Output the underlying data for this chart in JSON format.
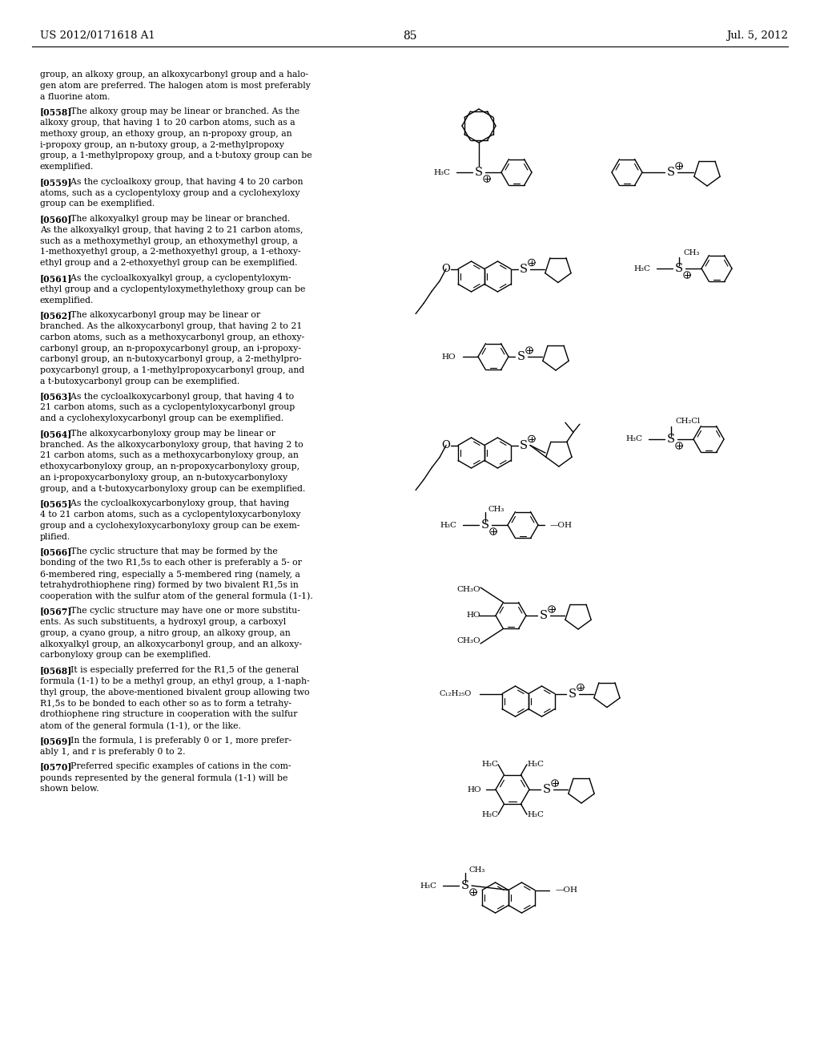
{
  "background_color": "#ffffff",
  "header_left": "US 2012/0171618 A1",
  "header_center": "85",
  "header_right": "Jul. 5, 2012",
  "text_lines": [
    "group, an alkoxy group, an alkoxycarbonyl group and a halo-",
    "gen atom are preferred. The halogen atom is most preferably",
    "a fluorine atom.",
    "",
    "[0558]    The alkoxy group may be linear or branched. As the",
    "alkoxy group, that having 1 to 20 carbon atoms, such as a",
    "methoxy group, an ethoxy group, an n-propoxy group, an",
    "i-propoxy group, an n-butoxy group, a 2-methylpropoxy",
    "group, a 1-methylpropoxy group, and a t-butoxy group can be",
    "exemplified.",
    "",
    "[0559]    As the cycloalkoxy group, that having 4 to 20 carbon",
    "atoms, such as a cyclopentyloxy group and a cyclohexyloxy",
    "group can be exemplified.",
    "",
    "[0560]    The alkoxyalkyl group may be linear or branched.",
    "As the alkoxyalkyl group, that having 2 to 21 carbon atoms,",
    "such as a methoxymethyl group, an ethoxymethyl group, a",
    "1-methoxyethyl group, a 2-methoxyethyl group, a 1-ethoxy-",
    "ethyl group and a 2-ethoxyethyl group can be exemplified.",
    "",
    "[0561]    As the cycloalkoxyalkyl group, a cyclopentyloxym-",
    "ethyl group and a cyclopentyloxymethylethoxy group can be",
    "exemplified.",
    "",
    "[0562]    The alkoxycarbonyl group may be linear or",
    "branched. As the alkoxycarbonyl group, that having 2 to 21",
    "carbon atoms, such as a methoxycarbonyl group, an ethoxy-",
    "carbonyl group, an n-propoxycarbonyl group, an i-propoxy-",
    "carbonyl group, an n-butoxycarbonyl group, a 2-methylpro-",
    "poxycarbonyl group, a 1-methylpropoxycarbonyl group, and",
    "a t-butoxycarbonyl group can be exemplified.",
    "",
    "[0563]    As the cycloalkoxycarbonyl group, that having 4 to",
    "21 carbon atoms, such as a cyclopentyloxycarbonyl group",
    "and a cyclohexyloxycarbonyl group can be exemplified.",
    "",
    "[0564]    The alkoxycarbonyloxy group may be linear or",
    "branched. As the alkoxycarbonyloxy group, that having 2 to",
    "21 carbon atoms, such as a methoxycarbonyloxy group, an",
    "ethoxycarbonyloxy group, an n-propoxycarbonyloxy group,",
    "an i-propoxycarbonyloxy group, an n-butoxycarbonyloxy",
    "group, and a t-butoxycarbonyloxy group can be exemplified.",
    "",
    "[0565]    As the cycloalkoxycarbonyloxy group, that having",
    "4 to 21 carbon atoms, such as a cyclopentyloxycarbonyloxy",
    "group and a cyclohexyloxycarbonyloxy group can be exem-",
    "plified.",
    "",
    "[0566]    The cyclic structure that may be formed by the",
    "bonding of the two R1,5s to each other is preferably a 5- or",
    "6-membered ring, especially a 5-membered ring (namely, a",
    "tetrahydrothiophene ring) formed by two bivalent R1,5s in",
    "cooperation with the sulfur atom of the general formula (1-1).",
    "",
    "[0567]    The cyclic structure may have one or more substitu-",
    "ents. As such substituents, a hydroxyl group, a carboxyl",
    "group, a cyano group, a nitro group, an alkoxy group, an",
    "alkoxyalkyl group, an alkoxycarbonyl group, and an alkoxy-",
    "carbonyloxy group can be exemplified.",
    "",
    "[0568]    It is especially preferred for the R1,5 of the general",
    "formula (1-1) to be a methyl group, an ethyl group, a 1-naph-",
    "thyl group, the above-mentioned bivalent group allowing two",
    "R1,5s to be bonded to each other so as to form a tetrahy-",
    "drothiophene ring structure in cooperation with the sulfur",
    "atom of the general formula (1-1), or the like.",
    "",
    "[0569]    In the formula, l is preferably 0 or 1, more prefer-",
    "ably 1, and r is preferably 0 to 2.",
    "",
    "[0570]    Preferred specific examples of cations in the com-",
    "pounds represented by the general formula (1-1) will be",
    "shown below."
  ],
  "bold_tags": [
    "[0558]",
    "[0559]",
    "[0560]",
    "[0561]",
    "[0562]",
    "[0563]",
    "[0564]",
    "[0565]",
    "[0566]",
    "[0567]",
    "[0568]",
    "[0569]",
    "[0570]"
  ]
}
